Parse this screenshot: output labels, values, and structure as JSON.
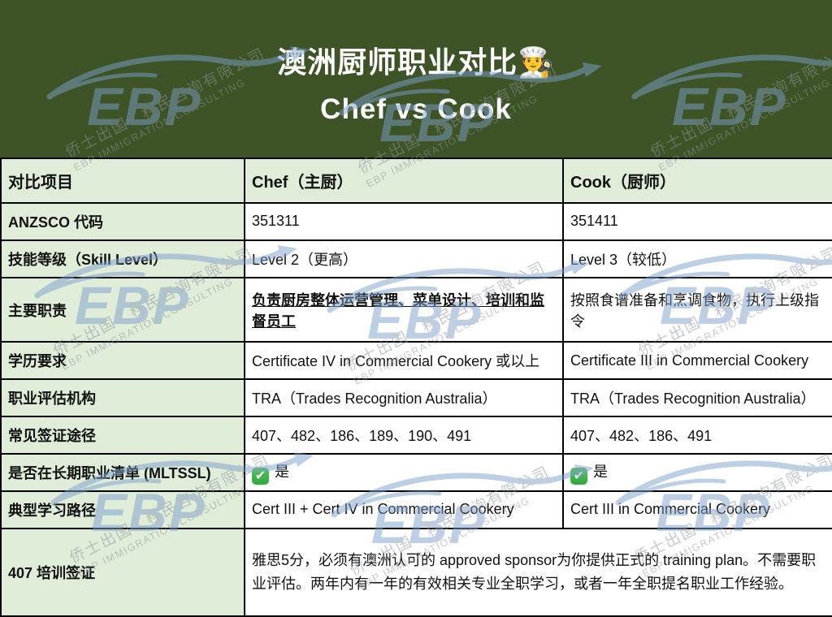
{
  "header": {
    "title": "澳洲厨师职业对比🧑‍🍳",
    "subtitle": "Chef vs Cook"
  },
  "watermark": {
    "brand": "EBP",
    "line1": "侨士出国｜移民咨询有限公司",
    "line2": "EBP IMMIGRATION CONSULTING"
  },
  "table": {
    "columns": {
      "item": "对比项目",
      "chef": "Chef（主厨）",
      "cook": "Cook（厨师）"
    },
    "rows": [
      {
        "label": "ANZSCO 代码",
        "chef": "351311",
        "cook": "351411"
      },
      {
        "label": "技能等级（Skill Level）",
        "chef": "Level 2（更高）",
        "cook": "Level 3（较低）"
      },
      {
        "label": "主要职责",
        "chef": "负责厨房整体运营管理、菜单设计、培训和监督员工",
        "cook": "按照食谱准备和烹调食物，执行上级指令",
        "chef_emphasis": true
      },
      {
        "label": "学历要求",
        "chef": "Certificate IV in Commercial Cookery 或以上",
        "cook": "Certificate III in Commercial Cookery"
      },
      {
        "label": "职业评估机构",
        "chef": "TRA（Trades Recognition Australia）",
        "cook": "TRA（Trades Recognition Australia）"
      },
      {
        "label": "常见签证途径",
        "chef": "407、482、186、189、190、491",
        "cook": "407、482、186、491"
      },
      {
        "label": "是否在长期职业清单 (MLTSSL)",
        "chef": "是",
        "cook": "是",
        "check_icon": true
      },
      {
        "label": "典型学习路径",
        "chef": "Cert III + Cert IV in Commercial Cookery",
        "cook": "Cert III in Commercial Cookery"
      }
    ],
    "footer": {
      "label": "407 培训签证",
      "text": "雅思5分，必须有澳洲认可的 approved sponsor为你提供正式的 training plan。不需要职业评估。两年内有一年的有效相关专业全职学习，或者一年全职提名职业工作经验。"
    }
  },
  "colors": {
    "banner_bg": "#3e5426",
    "label_bg": "#dfecd8",
    "cell_bg": "#ffffff",
    "emphasis_red": "#e8241c",
    "check_green": "#2ea93c",
    "watermark_blue": "#7da0cd",
    "border": "#000000"
  }
}
